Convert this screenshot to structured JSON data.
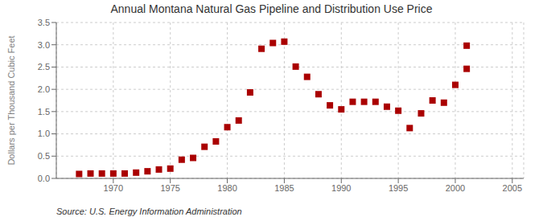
{
  "chart_data": {
    "type": "scatter",
    "title": "Annual Montana Natural Gas Pipeline and Distribution Use Price",
    "ylabel": "Dollars per Thousand Cubic Feet",
    "annotations": [
      "Source: U.S. Energy Information Administration"
    ],
    "series": [
      {
        "color": "#aa0000",
        "marker": "square",
        "x": [
          1967,
          1968,
          1969,
          1970,
          1971,
          1972,
          1973,
          1974,
          1975,
          1976,
          1977,
          1978,
          1979,
          1980,
          1981,
          1982,
          1983,
          1984,
          1985,
          1986,
          1987,
          1988,
          1989,
          1990,
          1991,
          1992,
          1993,
          1994,
          1995,
          1996,
          1997,
          1998,
          1999,
          2000,
          2001
        ],
        "values": [
          0.1,
          0.11,
          0.11,
          0.11,
          0.11,
          0.13,
          0.16,
          0.2,
          0.22,
          0.42,
          0.46,
          0.71,
          0.83,
          1.15,
          1.3,
          1.93,
          2.91,
          3.04,
          3.07,
          2.51,
          2.28,
          1.89,
          1.64,
          1.55,
          1.72,
          1.72,
          1.72,
          1.61,
          1.52,
          1.13,
          1.46,
          1.75,
          1.7,
          2.1,
          2.98
        ]
      },
      {
        "color": "#aa0000",
        "marker": "square",
        "x": [
          2001
        ],
        "values": [
          2.46
        ]
      }
    ],
    "xlim": [
      1965,
      2006
    ],
    "ylim": [
      0.0,
      3.5
    ],
    "xticks": [
      1970,
      1975,
      1980,
      1985,
      1990,
      1995,
      2000,
      2005
    ],
    "yticks": [
      {
        "value": 0,
        "label": "0.0"
      },
      0.5,
      {
        "value": 1,
        "label": "1.0"
      },
      1.5,
      {
        "value": 2,
        "label": "2.0"
      },
      2.5,
      {
        "value": 3,
        "label": "3.0"
      },
      3.5
    ],
    "grid": true
  }
}
